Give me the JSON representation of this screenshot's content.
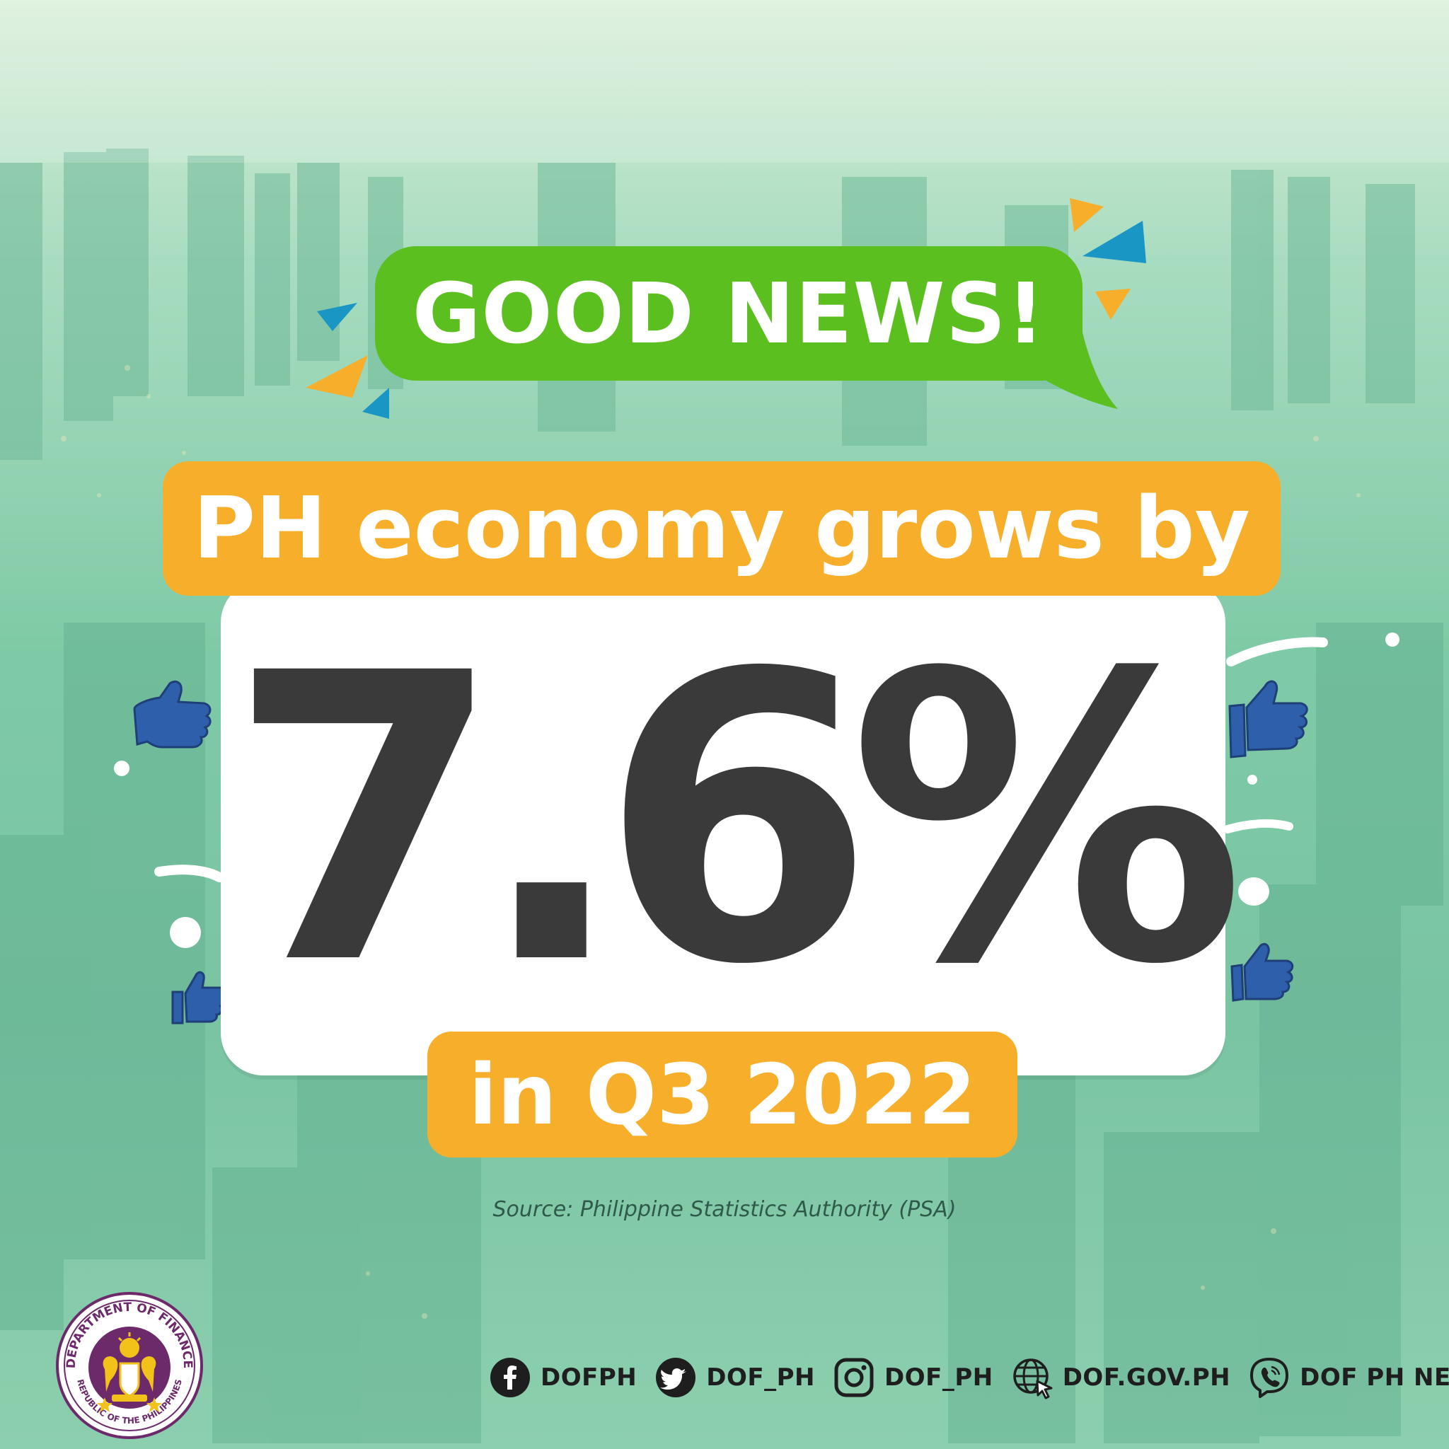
{
  "headline": "GOOD NEWS!",
  "subhead": "PH economy grows by",
  "value": "7.6%",
  "period": "in Q3 2022",
  "source": "Source: Philippine Statistics Authority (PSA)",
  "seal": {
    "top_text": "DEPARTMENT OF FINANCE",
    "bottom_text": "REPUBLIC OF THE PHILIPPINES"
  },
  "social": [
    {
      "icon": "facebook-icon",
      "label": "DOFPH"
    },
    {
      "icon": "twitter-icon",
      "label": "DOF_PH"
    },
    {
      "icon": "instagram-icon",
      "label": "DOF_PH"
    },
    {
      "icon": "globe-icon",
      "label": "DOF.GOV.PH"
    },
    {
      "icon": "viber-icon",
      "label": "DOF PH NEWS"
    }
  ],
  "colors": {
    "green": "#5bbf1f",
    "orange": "#f7ae2a",
    "blue": "#1a96c4",
    "thumbs_blue": "#2e5faa",
    "value_text": "#3a3a3a"
  }
}
